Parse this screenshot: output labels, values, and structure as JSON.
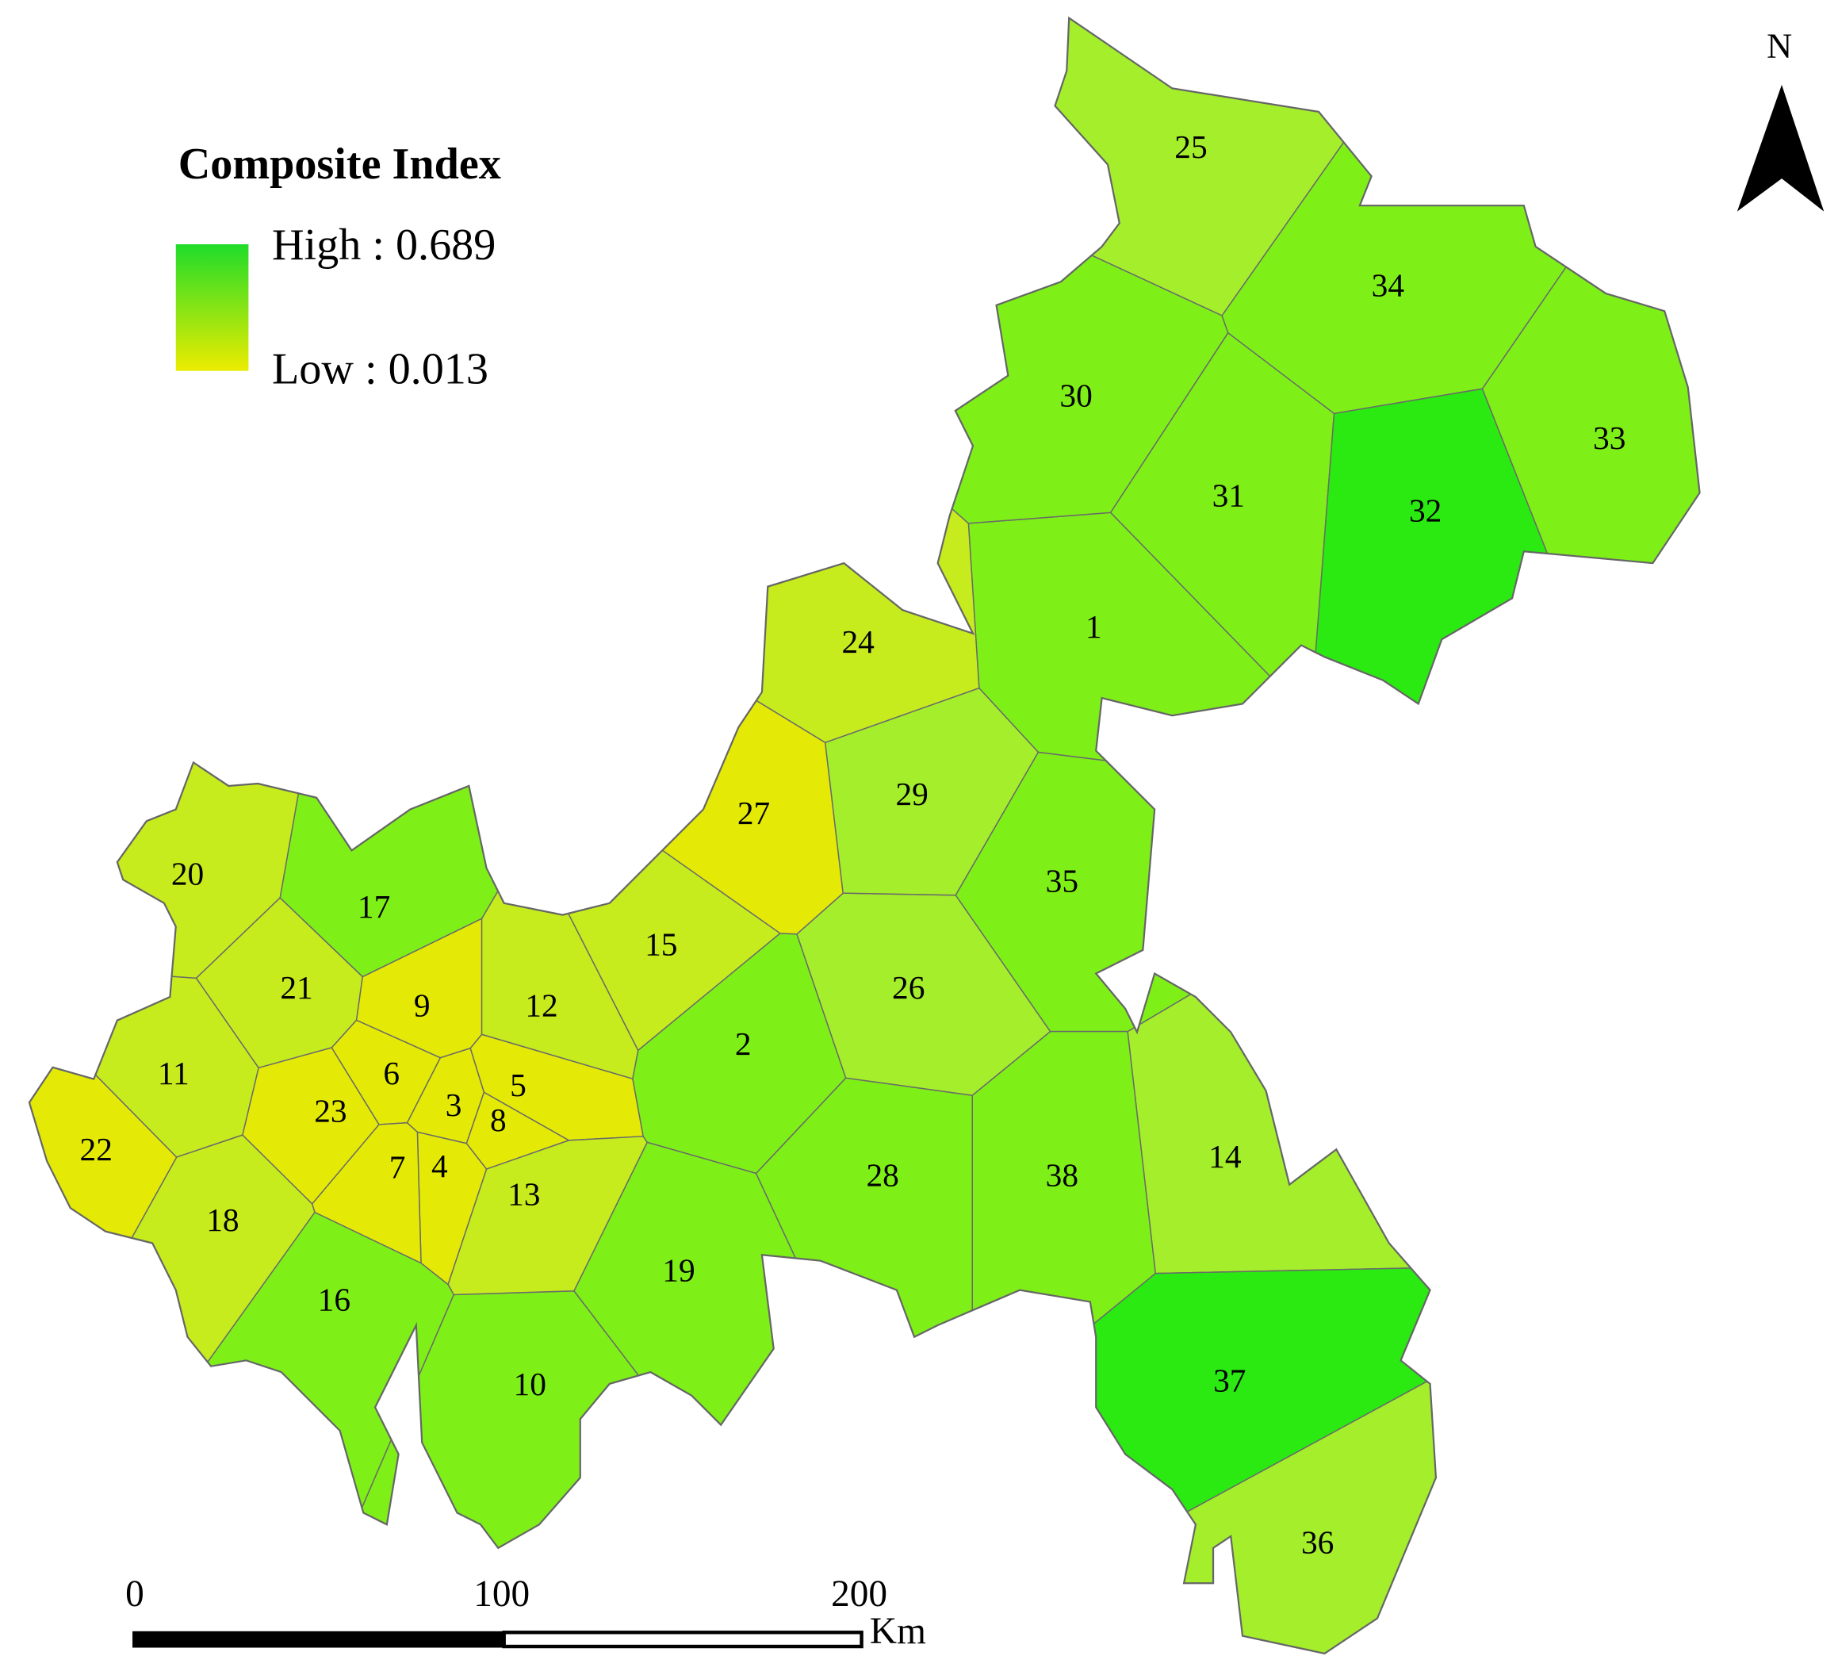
{
  "legend": {
    "title": "Composite Index",
    "high": "High : 0.689",
    "low": "Low : 0.013"
  },
  "north": "N",
  "scale_bar": {
    "ticks": [
      "0",
      "100",
      "200"
    ],
    "unit": "Km"
  },
  "regions": [
    {
      "label": "1"
    },
    {
      "label": "2"
    },
    {
      "label": "3"
    },
    {
      "label": "4"
    },
    {
      "label": "5"
    },
    {
      "label": "6"
    },
    {
      "label": "7"
    },
    {
      "label": "8"
    },
    {
      "label": "9"
    },
    {
      "label": "10"
    },
    {
      "label": "11"
    },
    {
      "label": "12"
    },
    {
      "label": "13"
    },
    {
      "label": "14"
    },
    {
      "label": "15"
    },
    {
      "label": "16"
    },
    {
      "label": "17"
    },
    {
      "label": "18"
    },
    {
      "label": "19"
    },
    {
      "label": "20"
    },
    {
      "label": "21"
    },
    {
      "label": "22"
    },
    {
      "label": "23"
    },
    {
      "label": "24"
    },
    {
      "label": "25"
    },
    {
      "label": "26"
    },
    {
      "label": "27"
    },
    {
      "label": "28"
    },
    {
      "label": "29"
    },
    {
      "label": "30"
    },
    {
      "label": "31"
    },
    {
      "label": "32"
    },
    {
      "label": "33"
    },
    {
      "label": "34"
    },
    {
      "label": "35"
    },
    {
      "label": "36"
    },
    {
      "label": "37"
    },
    {
      "label": "38"
    }
  ]
}
